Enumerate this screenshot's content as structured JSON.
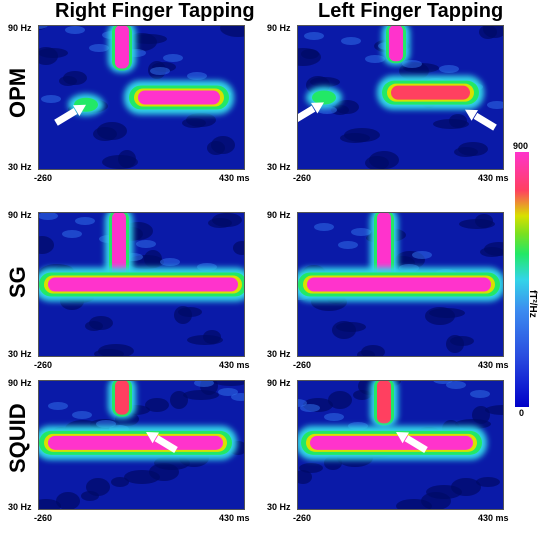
{
  "chart_data": [
    {
      "type": "heatmap",
      "title": "Right Finger Tapping",
      "row": "OPM",
      "y_tick_labels": [
        "90 Hz",
        "30 Hz"
      ],
      "x_tick_labels": [
        "-260",
        "430 ms"
      ],
      "xlim": [
        -260,
        430
      ],
      "ylim": [
        30,
        90
      ],
      "features": [
        {
          "kind": "beta/gamma burst",
          "t": 20,
          "f_range": [
            72,
            90
          ],
          "power": 900
        },
        {
          "kind": "beta band",
          "t_range": [
            60,
            360
          ],
          "f": 60,
          "power": 900
        },
        {
          "kind": "beta blob",
          "t": -100,
          "f": 57,
          "power": 400
        }
      ],
      "arrows": [
        {
          "points_to_t": -100,
          "points_to_f": 57
        }
      ]
    },
    {
      "type": "heatmap",
      "title": "Left Finger Tapping",
      "row": "OPM",
      "y_tick_labels": [
        "90 Hz",
        "30 Hz"
      ],
      "x_tick_labels": [
        "-260",
        "430 ms"
      ],
      "xlim": [
        -260,
        430
      ],
      "ylim": [
        30,
        90
      ],
      "features": [
        {
          "kind": "beta/gamma burst",
          "t": 70,
          "f_range": [
            75,
            90
          ],
          "power": 900
        },
        {
          "kind": "beta band",
          "t_range": [
            40,
            330
          ],
          "f": 62,
          "power": 600
        },
        {
          "kind": "beta blob",
          "t": -170,
          "f": 60,
          "power": 450
        }
      ],
      "arrows": [
        {
          "points_to_t": -170,
          "points_to_f": 58
        },
        {
          "points_to_t": 300,
          "points_to_f": 55
        }
      ]
    },
    {
      "type": "heatmap",
      "title": "",
      "row": "SG",
      "y_tick_labels": [
        "90 Hz",
        "30 Hz"
      ],
      "x_tick_labels": [
        "-260",
        "430 ms"
      ],
      "xlim": [
        -260,
        430
      ],
      "ylim": [
        30,
        90
      ],
      "features": [
        {
          "kind": "beta/gamma burst",
          "t": 10,
          "f_range": [
            62,
            90
          ],
          "power": 900
        },
        {
          "kind": "beta band",
          "t_range": [
            -240,
            420
          ],
          "f": 60,
          "power": 900
        }
      ],
      "arrows": []
    },
    {
      "type": "heatmap",
      "title": "",
      "row": "SG",
      "y_tick_labels": [
        "90 Hz",
        "30 Hz"
      ],
      "x_tick_labels": [
        "-260",
        "430 ms"
      ],
      "xlim": [
        -260,
        430
      ],
      "ylim": [
        30,
        90
      ],
      "features": [
        {
          "kind": "beta/gamma burst",
          "t": 30,
          "f_range": [
            62,
            90
          ],
          "power": 900
        },
        {
          "kind": "beta band",
          "t_range": [
            -240,
            400
          ],
          "f": 60,
          "power": 900
        }
      ],
      "arrows": []
    },
    {
      "type": "heatmap",
      "title": "",
      "row": "SQUID",
      "y_tick_labels": [
        "90 Hz",
        "30 Hz"
      ],
      "x_tick_labels": [
        "-260",
        "430 ms"
      ],
      "xlim": [
        -260,
        430
      ],
      "ylim": [
        30,
        90
      ],
      "features": [
        {
          "kind": "beta/gamma burst",
          "t": 20,
          "f_range": [
            74,
            90
          ],
          "power": 700
        },
        {
          "kind": "beta band",
          "t_range": [
            -240,
            370
          ],
          "f": 61,
          "power": 900
        }
      ],
      "arrows": [
        {
          "points_to_t": 100,
          "points_to_f": 66
        }
      ]
    },
    {
      "type": "heatmap",
      "title": "",
      "row": "SQUID",
      "y_tick_labels": [
        "90 Hz",
        "30 Hz"
      ],
      "x_tick_labels": [
        "-260",
        "430 ms"
      ],
      "xlim": [
        -260,
        430
      ],
      "ylim": [
        30,
        90
      ],
      "features": [
        {
          "kind": "beta/gamma burst",
          "t": 30,
          "f_range": [
            70,
            90
          ],
          "power": 600
        },
        {
          "kind": "beta band",
          "t_range": [
            -230,
            340
          ],
          "f": 61,
          "power": 800
        }
      ],
      "arrows": [
        {
          "points_to_t": 70,
          "points_to_f": 66
        }
      ]
    }
  ],
  "colorbar": {
    "max_label": "900",
    "min_label": "0",
    "unit_label": "fT²/Hz",
    "colors": [
      "#0000c8",
      "#2a4de0",
      "#3c8cf0",
      "#33d5e8",
      "#22e866",
      "#7be020",
      "#d8e000",
      "#ff4060",
      "#ff33cc"
    ]
  },
  "column_titles": [
    "Right Finger Tapping",
    "Left Finger Tapping"
  ],
  "row_labels": [
    "OPM",
    "SG",
    "SQUID"
  ]
}
